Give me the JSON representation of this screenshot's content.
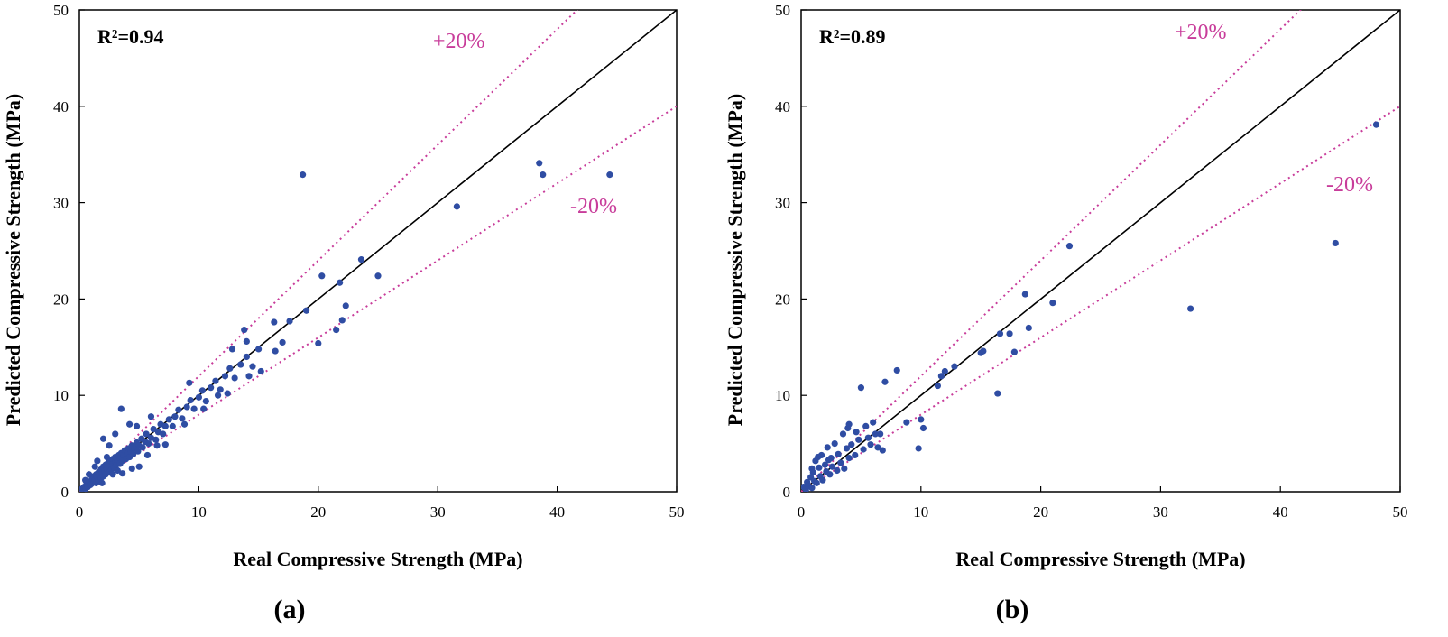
{
  "colors": {
    "points": "#2f4da3",
    "band": "#c83c9a",
    "identity": "#000000"
  },
  "chart_data": [
    {
      "type": "scatter",
      "panel_label": "(a)",
      "annotation": "R²=0.94",
      "xlabel": "Real Compressive Strength (MPa)",
      "ylabel": "Predicted Compressive Strength (MPa)",
      "xlim": [
        0,
        50
      ],
      "ylim": [
        0,
        50
      ],
      "xticks": [
        "0",
        "10",
        "20",
        "30",
        "40",
        "50"
      ],
      "yticks": [
        "0",
        "10",
        "20",
        "30",
        "40",
        "50"
      ],
      "band_plus_label": "+20%",
      "band_minus_label": "-20%",
      "points": [
        [
          0.2,
          0.3
        ],
        [
          0.4,
          0.5
        ],
        [
          0.5,
          0.3
        ],
        [
          0.6,
          0.8
        ],
        [
          0.7,
          0.5
        ],
        [
          0.8,
          1.0
        ],
        [
          0.9,
          0.7
        ],
        [
          1.0,
          1.2
        ],
        [
          1.0,
          0.8
        ],
        [
          1.1,
          1.4
        ],
        [
          1.2,
          1.0
        ],
        [
          1.2,
          1.6
        ],
        [
          1.3,
          1.2
        ],
        [
          1.4,
          0.9
        ],
        [
          1.4,
          1.8
        ],
        [
          1.5,
          1.5
        ],
        [
          1.6,
          2.0
        ],
        [
          1.6,
          1.2
        ],
        [
          1.7,
          1.7
        ],
        [
          1.8,
          2.3
        ],
        [
          1.8,
          1.4
        ],
        [
          1.9,
          2.0
        ],
        [
          2.0,
          2.6
        ],
        [
          2.0,
          1.6
        ],
        [
          2.1,
          2.2
        ],
        [
          2.2,
          2.8
        ],
        [
          2.2,
          1.8
        ],
        [
          2.3,
          2.4
        ],
        [
          2.4,
          3.0
        ],
        [
          2.5,
          2.0
        ],
        [
          2.5,
          2.7
        ],
        [
          2.6,
          3.2
        ],
        [
          2.7,
          2.3
        ],
        [
          2.8,
          2.9
        ],
        [
          2.8,
          3.4
        ],
        [
          2.9,
          2.5
        ],
        [
          3.0,
          3.1
        ],
        [
          3.0,
          3.6
        ],
        [
          3.1,
          2.8
        ],
        [
          3.2,
          3.3
        ],
        [
          3.3,
          3.8
        ],
        [
          3.4,
          2.9
        ],
        [
          3.4,
          3.5
        ],
        [
          3.5,
          4.0
        ],
        [
          3.6,
          3.2
        ],
        [
          3.7,
          3.8
        ],
        [
          3.8,
          4.3
        ],
        [
          3.9,
          3.4
        ],
        [
          4.0,
          4.0
        ],
        [
          4.1,
          4.5
        ],
        [
          4.2,
          3.6
        ],
        [
          4.3,
          4.2
        ],
        [
          4.4,
          4.8
        ],
        [
          4.5,
          3.9
        ],
        [
          4.6,
          4.5
        ],
        [
          4.8,
          5.1
        ],
        [
          4.9,
          4.2
        ],
        [
          5.0,
          4.8
        ],
        [
          5.2,
          5.5
        ],
        [
          5.3,
          4.6
        ],
        [
          5.5,
          5.2
        ],
        [
          5.6,
          6.0
        ],
        [
          5.8,
          5.0
        ],
        [
          6.0,
          5.6
        ],
        [
          6.2,
          6.5
        ],
        [
          6.4,
          5.4
        ],
        [
          6.6,
          6.2
        ],
        [
          6.8,
          7.0
        ],
        [
          7.0,
          6.0
        ],
        [
          7.2,
          6.8
        ],
        [
          7.5,
          7.5
        ],
        [
          7.8,
          6.8
        ],
        [
          8.0,
          7.8
        ],
        [
          8.3,
          8.5
        ],
        [
          8.6,
          7.6
        ],
        [
          9.0,
          8.8
        ],
        [
          9.3,
          9.5
        ],
        [
          9.6,
          8.6
        ],
        [
          10.0,
          9.8
        ],
        [
          10.3,
          10.5
        ],
        [
          10.6,
          9.4
        ],
        [
          11.0,
          10.8
        ],
        [
          11.4,
          11.5
        ],
        [
          11.8,
          10.6
        ],
        [
          12.2,
          12.0
        ],
        [
          12.6,
          12.8
        ],
        [
          13.0,
          11.8
        ],
        [
          13.5,
          13.2
        ],
        [
          14.0,
          14.0
        ],
        [
          14.5,
          13.0
        ],
        [
          15.0,
          14.8
        ],
        [
          16.3,
          17.6
        ],
        [
          17.0,
          15.5
        ],
        [
          17.6,
          17.7
        ],
        [
          18.7,
          32.9
        ],
        [
          19.0,
          18.8
        ],
        [
          20.0,
          15.4
        ],
        [
          20.3,
          22.4
        ],
        [
          21.5,
          16.8
        ],
        [
          21.8,
          21.7
        ],
        [
          22.0,
          17.8
        ],
        [
          22.3,
          19.3
        ],
        [
          23.6,
          24.1
        ],
        [
          25.0,
          22.4
        ],
        [
          31.6,
          29.6
        ],
        [
          38.5,
          34.1
        ],
        [
          38.8,
          32.9
        ],
        [
          44.4,
          32.9
        ],
        [
          3.5,
          8.6
        ],
        [
          2.0,
          5.5
        ],
        [
          1.5,
          3.2
        ],
        [
          2.5,
          4.8
        ],
        [
          3.0,
          6.0
        ],
        [
          4.2,
          7.0
        ],
        [
          5.0,
          2.6
        ],
        [
          6.0,
          7.8
        ],
        [
          4.4,
          2.4
        ],
        [
          3.2,
          2.2
        ],
        [
          2.8,
          1.8
        ],
        [
          7.2,
          4.9
        ],
        [
          1.3,
          2.6
        ],
        [
          0.8,
          1.8
        ],
        [
          2.3,
          3.6
        ],
        [
          4.8,
          6.8
        ],
        [
          6.5,
          4.8
        ],
        [
          9.2,
          11.3
        ],
        [
          12.8,
          14.8
        ],
        [
          13.8,
          16.8
        ],
        [
          14.2,
          12.0
        ],
        [
          15.2,
          12.5
        ],
        [
          8.8,
          7.0
        ],
        [
          10.4,
          8.6
        ],
        [
          11.6,
          10.0
        ],
        [
          1.9,
          0.9
        ],
        [
          0.5,
          1.2
        ],
        [
          3.6,
          1.9
        ],
        [
          5.7,
          3.8
        ],
        [
          16.4,
          14.6
        ],
        [
          14.0,
          15.6
        ],
        [
          12.4,
          10.2
        ]
      ]
    },
    {
      "type": "scatter",
      "panel_label": "(b)",
      "annotation": "R²=0.89",
      "xlabel": "Real Compressive Strength (MPa)",
      "ylabel": "Predicted Compressive Strength (MPa)",
      "xlim": [
        0,
        50
      ],
      "ylim": [
        0,
        50
      ],
      "xticks": [
        "0",
        "10",
        "20",
        "30",
        "40",
        "50"
      ],
      "yticks": [
        "0",
        "10",
        "20",
        "30",
        "40",
        "50"
      ],
      "band_plus_label": "+20%",
      "band_minus_label": "-20%",
      "points": [
        [
          0.2,
          0.5
        ],
        [
          0.4,
          0.2
        ],
        [
          0.5,
          1.0
        ],
        [
          0.6,
          0.6
        ],
        [
          0.8,
          1.5
        ],
        [
          0.9,
          0.4
        ],
        [
          1.0,
          2.0
        ],
        [
          1.1,
          1.1
        ],
        [
          1.2,
          3.2
        ],
        [
          1.3,
          0.9
        ],
        [
          1.5,
          2.5
        ],
        [
          1.6,
          1.6
        ],
        [
          1.7,
          3.8
        ],
        [
          1.8,
          1.2
        ],
        [
          2.0,
          2.8
        ],
        [
          2.1,
          2.1
        ],
        [
          2.2,
          4.6
        ],
        [
          2.4,
          1.8
        ],
        [
          2.5,
          3.5
        ],
        [
          2.6,
          2.6
        ],
        [
          2.8,
          5.0
        ],
        [
          3.0,
          2.2
        ],
        [
          3.1,
          3.9
        ],
        [
          3.3,
          3.0
        ],
        [
          3.5,
          6.0
        ],
        [
          3.6,
          2.4
        ],
        [
          3.8,
          4.5
        ],
        [
          4.0,
          3.5
        ],
        [
          4.0,
          7.0
        ],
        [
          4.2,
          4.9
        ],
        [
          4.5,
          3.8
        ],
        [
          4.6,
          6.2
        ],
        [
          4.8,
          5.4
        ],
        [
          5.0,
          10.8
        ],
        [
          5.2,
          4.4
        ],
        [
          5.4,
          6.8
        ],
        [
          5.6,
          5.6
        ],
        [
          5.8,
          4.9
        ],
        [
          6.0,
          7.2
        ],
        [
          6.2,
          6.0
        ],
        [
          6.4,
          4.6
        ],
        [
          6.8,
          4.3
        ],
        [
          7.0,
          11.4
        ],
        [
          8.0,
          12.6
        ],
        [
          8.8,
          7.2
        ],
        [
          9.8,
          4.5
        ],
        [
          10.0,
          7.5
        ],
        [
          10.2,
          6.6
        ],
        [
          11.4,
          11.0
        ],
        [
          11.7,
          12.0
        ],
        [
          12.0,
          12.5
        ],
        [
          12.8,
          13.0
        ],
        [
          15.0,
          14.4
        ],
        [
          15.2,
          14.6
        ],
        [
          16.4,
          10.2
        ],
        [
          16.6,
          16.4
        ],
        [
          17.4,
          16.4
        ],
        [
          17.8,
          14.5
        ],
        [
          18.7,
          20.5
        ],
        [
          19.0,
          17.0
        ],
        [
          21.0,
          19.6
        ],
        [
          22.4,
          25.5
        ],
        [
          32.5,
          19.0
        ],
        [
          44.6,
          25.8
        ],
        [
          48.0,
          38.1
        ],
        [
          1.4,
          3.6
        ],
        [
          2.3,
          3.3
        ],
        [
          3.9,
          6.6
        ],
        [
          0.9,
          2.4
        ],
        [
          6.6,
          6.0
        ]
      ]
    }
  ]
}
